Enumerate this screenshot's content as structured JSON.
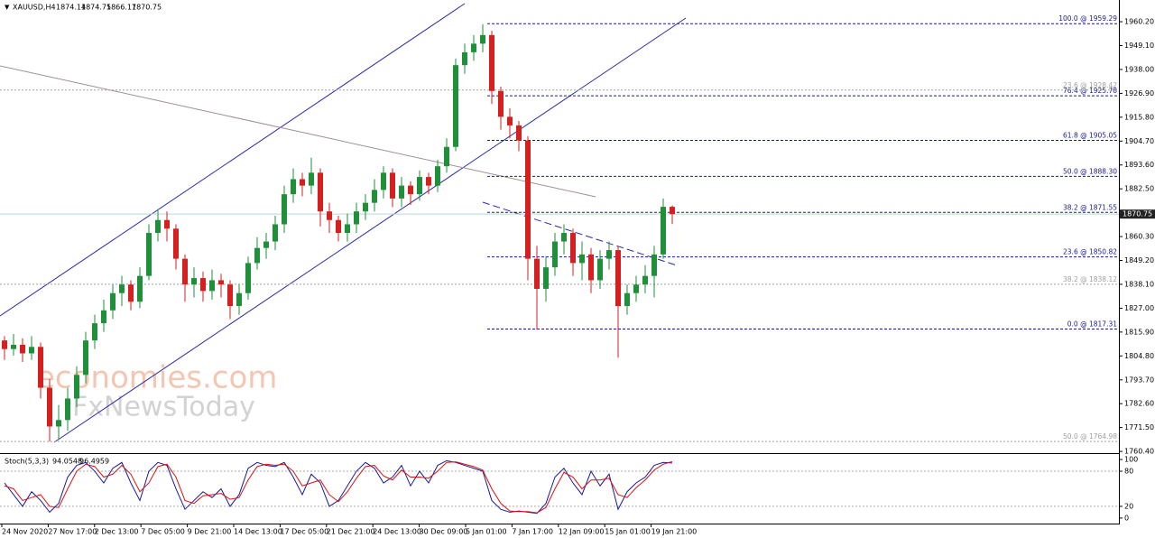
{
  "chart_data": {
    "type": "candlestick",
    "symbol": "XAUUSD,H4",
    "x_labels": [
      "24 Nov 2020",
      "27 Nov 17:00",
      "2 Dec 13:00",
      "7 Dec 05:00",
      "9 Dec 21:00",
      "14 Dec 13:00",
      "17 Dec 05:00",
      "21 Dec 21:00",
      "24 Dec 13:00",
      "30 Dec 09:00",
      "5 Jan 01:00",
      "7 Jan 17:00",
      "12 Jan 09:00",
      "15 Jan 01:00",
      "19 Jan 21:00"
    ],
    "open": [
      1812,
      1808,
      1810,
      1806,
      1809,
      1790,
      1772,
      1775,
      1785,
      1796,
      1812,
      1820,
      1826,
      1834,
      1838,
      1830,
      1842,
      1862,
      1868,
      1864,
      1850,
      1838,
      1841,
      1835,
      1840,
      1838,
      1828,
      1834,
      1848,
      1855,
      1858,
      1866,
      1880,
      1887,
      1884,
      1890,
      1872,
      1868,
      1862,
      1866,
      1872,
      1876,
      1882,
      1890,
      1878,
      1884,
      1880,
      1888,
      1884,
      1893,
      1902,
      1940,
      1946,
      1950,
      1954,
      1928,
      1916,
      1912,
      1905,
      1850,
      1836,
      1846,
      1858,
      1862,
      1848,
      1852,
      1840,
      1850,
      1854,
      1828,
      1834,
      1838,
      1842,
      1852,
      1874.14
    ],
    "high": [
      1814,
      1815,
      1813,
      1814,
      1811,
      1794,
      1782,
      1790,
      1800,
      1816,
      1824,
      1831,
      1838,
      1842,
      1840,
      1846,
      1866,
      1873,
      1872,
      1866,
      1852,
      1846,
      1844,
      1845,
      1843,
      1840,
      1838,
      1851,
      1860,
      1862,
      1870,
      1884,
      1892,
      1890,
      1897,
      1892,
      1876,
      1870,
      1871,
      1876,
      1880,
      1887,
      1893,
      1892,
      1888,
      1886,
      1891,
      1890,
      1896,
      1906,
      1943,
      1950,
      1954,
      1959,
      1956,
      1930,
      1920,
      1914,
      1907,
      1856,
      1851,
      1862,
      1866,
      1864,
      1858,
      1855,
      1854,
      1858,
      1856,
      1838,
      1842,
      1847,
      1856,
      1878,
      1874.75
    ],
    "low": [
      1803,
      1805,
      1802,
      1803,
      1785,
      1765,
      1766,
      1770,
      1781,
      1792,
      1808,
      1816,
      1822,
      1828,
      1826,
      1827,
      1840,
      1858,
      1858,
      1845,
      1830,
      1832,
      1830,
      1831,
      1832,
      1822,
      1824,
      1831,
      1845,
      1850,
      1854,
      1862,
      1876,
      1879,
      1880,
      1865,
      1862,
      1858,
      1858,
      1862,
      1868,
      1872,
      1878,
      1874,
      1874,
      1875,
      1877,
      1880,
      1881,
      1890,
      1900,
      1936,
      1942,
      1946,
      1922,
      1910,
      1906,
      1900,
      1840,
      1817,
      1830,
      1842,
      1852,
      1842,
      1840,
      1834,
      1836,
      1845,
      1804,
      1824,
      1830,
      1834,
      1832,
      1850,
      1866.17
    ],
    "close": [
      1808,
      1810,
      1806,
      1809,
      1790,
      1772,
      1775,
      1785,
      1796,
      1812,
      1820,
      1826,
      1834,
      1838,
      1830,
      1842,
      1862,
      1868,
      1864,
      1850,
      1838,
      1841,
      1835,
      1840,
      1838,
      1828,
      1834,
      1848,
      1855,
      1858,
      1866,
      1880,
      1887,
      1884,
      1890,
      1872,
      1868,
      1862,
      1866,
      1872,
      1876,
      1882,
      1890,
      1878,
      1884,
      1880,
      1888,
      1884,
      1893,
      1902,
      1940,
      1946,
      1950,
      1954,
      1928,
      1916,
      1912,
      1905,
      1850,
      1836,
      1846,
      1858,
      1862,
      1848,
      1852,
      1840,
      1850,
      1854,
      1828,
      1834,
      1838,
      1842,
      1852,
      1874.14,
      1870.75
    ],
    "up_color": "#1f8f3a",
    "down_color": "#d61f1f",
    "ylim": [
      1759.6,
      1970.3
    ],
    "yticks": [
      {
        "value": 1960.2,
        "label": "1960.20"
      },
      {
        "value": 1949.1,
        "label": "1949.10"
      },
      {
        "value": 1938,
        "label": "1938.00"
      },
      {
        "value": 1926.9,
        "label": "1926.90"
      },
      {
        "value": 1915.8,
        "label": "1915.80"
      },
      {
        "value": 1904.7,
        "label": "1904.70"
      },
      {
        "value": 1893.6,
        "label": "1893.60"
      },
      {
        "value": 1882.5,
        "label": "1882.50"
      },
      {
        "value": 1860.3,
        "label": "1860.30"
      },
      {
        "value": 1849.2,
        "label": "1849.20"
      },
      {
        "value": 1838.1,
        "label": "1838.10"
      },
      {
        "value": 1827,
        "label": "1827.00"
      },
      {
        "value": 1815.9,
        "label": "1815.90"
      },
      {
        "value": 1804.8,
        "label": "1804.80"
      },
      {
        "value": 1793.7,
        "label": "1793.70"
      },
      {
        "value": 1782.6,
        "label": "1782.60"
      },
      {
        "value": 1771.5,
        "label": "1771.50"
      },
      {
        "value": 1760.4,
        "label": "1760.40"
      }
    ],
    "fibonacci": [
      {
        "label": "100.0 @ 1959.29",
        "value": 1959.29,
        "color": "#1a1a9c"
      },
      {
        "label": "76.4 @ 1925.78",
        "value": 1925.78,
        "color": "#1a1a9c"
      },
      {
        "label": "61.8 @ 1905.05",
        "value": 1905.05,
        "color": "#1a1a9c"
      },
      {
        "label": "50.0 @ 1888.30",
        "value": 1888.3,
        "color": "#1a1a9c"
      },
      {
        "label": "38.2 @ 1871.55",
        "value": 1871.55,
        "color": "#1a1a9c"
      },
      {
        "label": "23.6 @ 1850.82",
        "value": 1850.82,
        "color": "#1a1a9c"
      },
      {
        "label": "0.0 @ 1817.31",
        "value": 1817.31,
        "color": "#1a1a9c"
      },
      {
        "label": "23.6 @ 1928.42",
        "value": 1928.42,
        "color": "#a0a0a0"
      },
      {
        "label": "38.2 @ 1838.12",
        "value": 1838.12,
        "color": "#a0a0a0"
      },
      {
        "label": "50.0 @ 1764.98",
        "value": 1764.98,
        "color": "#a0a0a0"
      }
    ],
    "watermark": [
      "economies.com",
      "FxNewsToday"
    ],
    "stochastic": {
      "label": "Stoch(5,3,3)",
      "ylim": [
        -9.4,
        107.8
      ],
      "yticks": [
        100,
        80,
        20,
        0
      ],
      "series": [
        {
          "name": "main",
          "color": "#1a1a9c",
          "values": [
            60,
            40,
            20,
            45,
            30,
            10,
            25,
            70,
            90,
            95,
            80,
            60,
            85,
            95,
            60,
            30,
            80,
            95,
            90,
            50,
            15,
            30,
            45,
            35,
            50,
            20,
            40,
            85,
            95,
            90,
            88,
            95,
            70,
            40,
            75,
            60,
            20,
            30,
            55,
            80,
            95,
            85,
            60,
            70,
            90,
            55,
            80,
            60,
            90,
            98,
            95,
            90,
            85,
            80,
            30,
            15,
            10,
            12,
            10,
            8,
            25,
            70,
            85,
            60,
            40,
            80,
            55,
            75,
            15,
            45,
            60,
            70,
            90,
            95,
            94.0548
          ]
        },
        {
          "name": "signal",
          "color": "#e01010",
          "values": [
            55,
            50,
            30,
            35,
            40,
            20,
            18,
            50,
            80,
            92,
            88,
            70,
            75,
            90,
            75,
            45,
            60,
            88,
            92,
            70,
            30,
            25,
            38,
            40,
            42,
            32,
            35,
            65,
            88,
            92,
            90,
            92,
            80,
            55,
            60,
            65,
            40,
            28,
            45,
            68,
            88,
            90,
            72,
            65,
            82,
            70,
            70,
            68,
            80,
            95,
            96,
            92,
            88,
            82,
            50,
            25,
            12,
            11,
            11,
            9,
            18,
            50,
            78,
            70,
            50,
            65,
            65,
            68,
            40,
            35,
            52,
            65,
            82,
            92,
            96.4959
          ]
        }
      ]
    }
  }
}
